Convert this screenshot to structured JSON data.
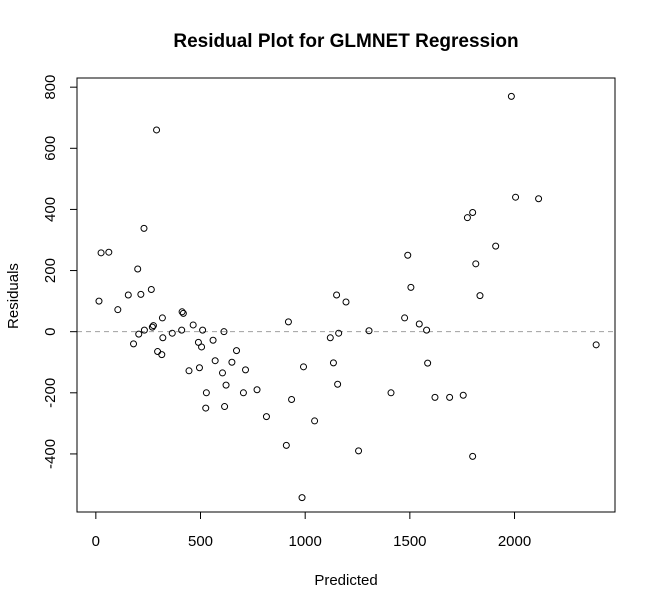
{
  "chart_data": {
    "type": "scatter",
    "title": "Residual Plot for GLMNET Regression",
    "xlabel": "Predicted",
    "ylabel": "Residuals",
    "xlim": [
      -90,
      2480
    ],
    "ylim": [
      -590,
      830
    ],
    "xticks": [
      0,
      500,
      1000,
      1500,
      2000
    ],
    "yticks": [
      -400,
      -200,
      0,
      200,
      400,
      600,
      800
    ],
    "reference_line": {
      "y": 0,
      "style": "dashed",
      "color": "#a0a0a0"
    },
    "grid": false,
    "legend": "none",
    "points": [
      [
        15,
        100
      ],
      [
        25,
        258
      ],
      [
        62,
        260
      ],
      [
        105,
        72
      ],
      [
        155,
        120
      ],
      [
        180,
        -40
      ],
      [
        200,
        205
      ],
      [
        205,
        -8
      ],
      [
        215,
        122
      ],
      [
        230,
        338
      ],
      [
        232,
        5
      ],
      [
        265,
        138
      ],
      [
        270,
        15
      ],
      [
        275,
        20
      ],
      [
        290,
        660
      ],
      [
        295,
        -65
      ],
      [
        315,
        -75
      ],
      [
        318,
        45
      ],
      [
        320,
        -20
      ],
      [
        365,
        -5
      ],
      [
        410,
        5
      ],
      [
        412,
        65
      ],
      [
        418,
        60
      ],
      [
        445,
        -128
      ],
      [
        465,
        22
      ],
      [
        490,
        -35
      ],
      [
        495,
        -118
      ],
      [
        505,
        -50
      ],
      [
        510,
        5
      ],
      [
        525,
        -250
      ],
      [
        528,
        -200
      ],
      [
        560,
        -28
      ],
      [
        570,
        -95
      ],
      [
        605,
        -135
      ],
      [
        612,
        0
      ],
      [
        615,
        -245
      ],
      [
        622,
        -175
      ],
      [
        650,
        -100
      ],
      [
        672,
        -62
      ],
      [
        705,
        -200
      ],
      [
        715,
        -125
      ],
      [
        770,
        -190
      ],
      [
        815,
        -278
      ],
      [
        910,
        -372
      ],
      [
        920,
        32
      ],
      [
        935,
        -222
      ],
      [
        985,
        -543
      ],
      [
        992,
        -115
      ],
      [
        1045,
        -292
      ],
      [
        1120,
        -20
      ],
      [
        1135,
        -102
      ],
      [
        1150,
        120
      ],
      [
        1155,
        -172
      ],
      [
        1160,
        -5
      ],
      [
        1195,
        97
      ],
      [
        1255,
        -390
      ],
      [
        1305,
        3
      ],
      [
        1410,
        -200
      ],
      [
        1475,
        45
      ],
      [
        1490,
        250
      ],
      [
        1505,
        145
      ],
      [
        1545,
        25
      ],
      [
        1580,
        5
      ],
      [
        1585,
        -103
      ],
      [
        1620,
        -215
      ],
      [
        1690,
        -215
      ],
      [
        1755,
        -208
      ],
      [
        1775,
        373
      ],
      [
        1800,
        390
      ],
      [
        1800,
        -408
      ],
      [
        1815,
        222
      ],
      [
        1835,
        118
      ],
      [
        1910,
        280
      ],
      [
        1985,
        770
      ],
      [
        2005,
        440
      ],
      [
        2115,
        435
      ],
      [
        2390,
        -43
      ]
    ]
  }
}
